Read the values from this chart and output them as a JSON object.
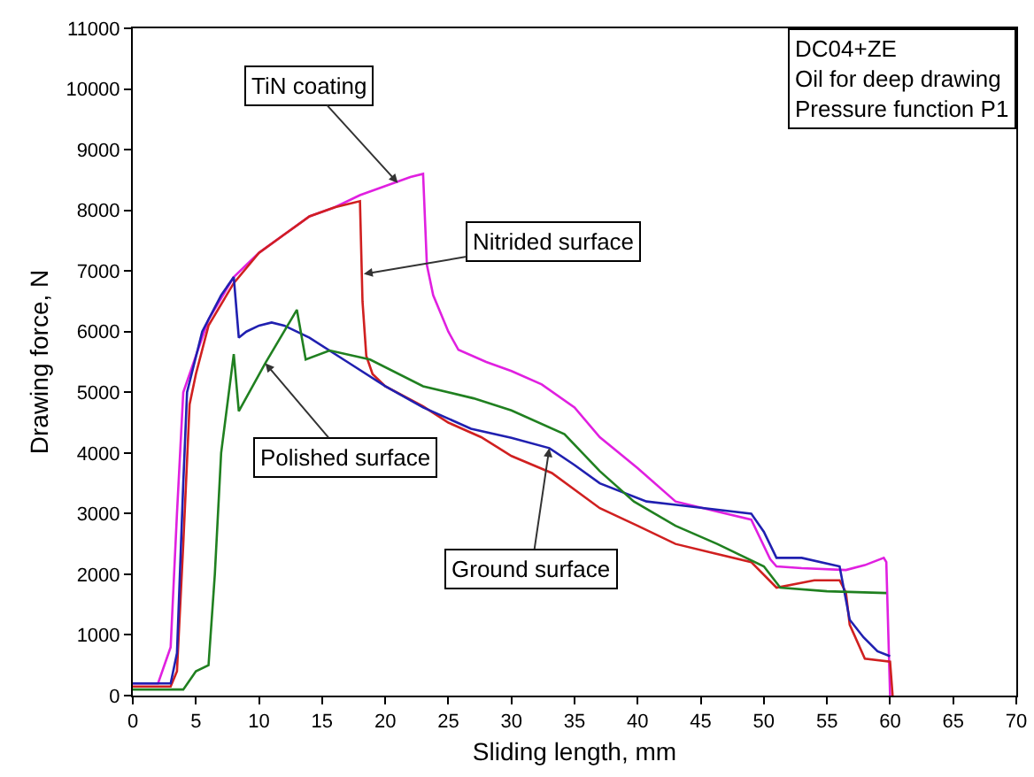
{
  "chart_data": {
    "type": "line",
    "xlabel": "Sliding length, mm",
    "ylabel": "Drawing force, N",
    "xlim": [
      0,
      70
    ],
    "xticks": [
      0,
      5,
      10,
      15,
      20,
      25,
      30,
      35,
      40,
      45,
      50,
      55,
      60,
      65,
      70
    ],
    "ylim": [
      0,
      11000
    ],
    "yticks": [
      0,
      1000,
      2000,
      3000,
      4000,
      5000,
      6000,
      7000,
      8000,
      9000,
      10000,
      11000
    ],
    "line_style": "solid",
    "series": [
      {
        "color": "#e020e0",
        "x": [
          0,
          2,
          2.5,
          3,
          3.5,
          4,
          5,
          6,
          8,
          10,
          12,
          14,
          16,
          18,
          20,
          22,
          23,
          23.3,
          23.8,
          25,
          25.8,
          28,
          30,
          32.4,
          35,
          37,
          40,
          43,
          46,
          49,
          50.5,
          51,
          53,
          56.5,
          58,
          59.5,
          59.7,
          60
        ],
        "values": [
          200,
          200,
          500,
          800,
          3000,
          5000,
          5600,
          6200,
          6900,
          7300,
          7600,
          7900,
          8050,
          8250,
          8400,
          8550,
          8600,
          7100,
          6600,
          6000,
          5700,
          5500,
          5350,
          5130,
          4750,
          4260,
          3750,
          3200,
          3050,
          2900,
          2250,
          2130,
          2100,
          2070,
          2150,
          2270,
          2200,
          0
        ]
      },
      {
        "color": "#d02020",
        "x": [
          0,
          3,
          3.5,
          4,
          4.5,
          5,
          6,
          8,
          10,
          12,
          14,
          16,
          17,
          18,
          18.2,
          18.5,
          19,
          20,
          23,
          25,
          27.6,
          30,
          33.2,
          37,
          40,
          43,
          46,
          49,
          51,
          54,
          56,
          56.5,
          56.8,
          58,
          60,
          60.2
        ],
        "values": [
          150,
          150,
          400,
          2500,
          4800,
          5300,
          6100,
          6800,
          7300,
          7600,
          7900,
          8050,
          8100,
          8150,
          6500,
          5600,
          5300,
          5100,
          4770,
          4500,
          4260,
          3950,
          3670,
          3090,
          2800,
          2500,
          2350,
          2200,
          1780,
          1900,
          1900,
          1700,
          1170,
          610,
          560,
          0
        ]
      },
      {
        "color": "#2020b0",
        "x": [
          0,
          3,
          3.5,
          4,
          4.3,
          5.5,
          7,
          8,
          8.4,
          9,
          10,
          11,
          12,
          14,
          17,
          20,
          23,
          26.8,
          30,
          33,
          35,
          37,
          40.7,
          45.3,
          49,
          50,
          51,
          53,
          56,
          56.8,
          57.9,
          59,
          60
        ],
        "values": [
          200,
          200,
          700,
          3500,
          5000,
          6000,
          6600,
          6900,
          5900,
          6000,
          6100,
          6150,
          6100,
          5900,
          5500,
          5100,
          4750,
          4400,
          4250,
          4080,
          3800,
          3500,
          3200,
          3090,
          3000,
          2700,
          2270,
          2270,
          2130,
          1250,
          960,
          730,
          650
        ]
      },
      {
        "color": "#208020",
        "x": [
          0,
          4,
          5,
          6,
          6.5,
          7,
          8,
          8.4,
          10.5,
          13,
          13.7,
          15.6,
          18.8,
          23,
          27,
          30,
          34.2,
          37,
          39.7,
          43,
          46.3,
          50,
          51.3,
          55,
          59.7
        ],
        "values": [
          100,
          100,
          400,
          500,
          2000,
          4000,
          5630,
          4690,
          5480,
          6360,
          5540,
          5690,
          5540,
          5100,
          4900,
          4700,
          4310,
          3700,
          3200,
          2800,
          2500,
          2130,
          1780,
          1720,
          1690
        ]
      }
    ],
    "annotations": [
      {
        "text": "TiN coating",
        "x": 21,
        "y": 8450
      },
      {
        "text": "Nitrided surface",
        "x": 18.3,
        "y": 6950
      },
      {
        "text": "Polished surface",
        "x": 10.5,
        "y": 5480
      },
      {
        "text": "Ground surface",
        "x": 33,
        "y": 4080
      },
      "DC04+ZE\nOil for deep drawing\nPressure function P1"
    ]
  }
}
